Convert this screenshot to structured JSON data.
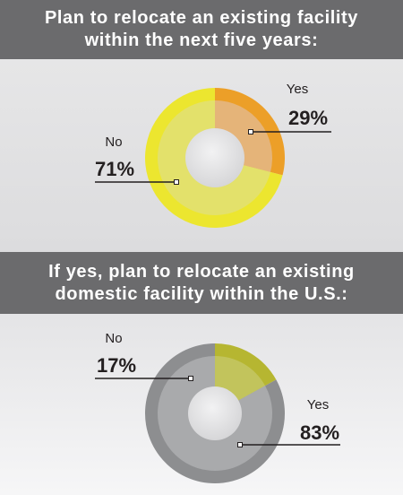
{
  "charts": [
    {
      "title_line1": "Plan to relocate an existing  facility",
      "title_line2": "within the next five years:"
    },
    {
      "title_line1": "If yes, plan to relocate an existing",
      "title_line2": "domestic facility within the U.S.:"
    }
  ],
  "chart_data": [
    {
      "type": "pie",
      "title": "Plan to relocate an existing  facility within the next five years:",
      "slices": [
        {
          "label": "Yes",
          "pct_label": "29%",
          "value": 29,
          "outer_color": "#ec9f28",
          "inner_color": "#e5b479"
        },
        {
          "label": "No",
          "pct_label": "71%",
          "value": 71,
          "outer_color": "#ece62f",
          "inner_color": "#e3e16b"
        }
      ],
      "center_color": "#d4d4d6"
    },
    {
      "type": "pie",
      "title": "If yes, plan to relocate an existing domestic facility within the U.S.:",
      "slices": [
        {
          "label": "No",
          "pct_label": "17%",
          "value": 17,
          "outer_color": "#b6b631",
          "inner_color": "#c2c45c"
        },
        {
          "label": "Yes",
          "pct_label": "83%",
          "value": 83,
          "outer_color": "#8d8e90",
          "inner_color": "#a9aaac"
        }
      ],
      "center_color": "#d4d4d6"
    }
  ]
}
